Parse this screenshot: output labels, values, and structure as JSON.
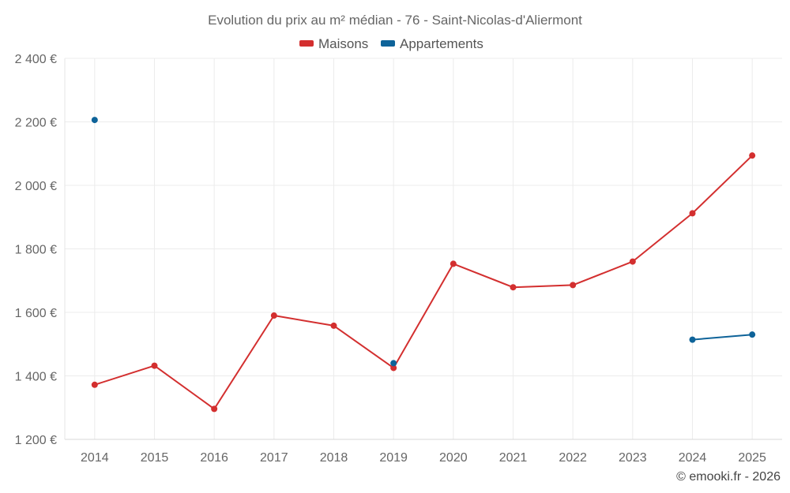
{
  "chart_data": {
    "type": "line",
    "title": "Evolution du prix au m² médian - 76 - Saint-Nicolas-d'Aliermont",
    "categories": [
      "2014",
      "2015",
      "2016",
      "2017",
      "2018",
      "2019",
      "2020",
      "2021",
      "2022",
      "2023",
      "2024",
      "2025"
    ],
    "series": [
      {
        "name": "Maisons",
        "color": "#d32f2f",
        "values": [
          1372,
          1432,
          1296,
          1590,
          1558,
          1425,
          1753,
          1679,
          1686,
          1760,
          1912,
          2094
        ]
      },
      {
        "name": "Appartements",
        "color": "#0e6399",
        "values": [
          2206,
          null,
          null,
          null,
          null,
          1440,
          null,
          null,
          null,
          null,
          1514,
          1530
        ]
      }
    ],
    "ylim": [
      1200,
      2400
    ],
    "yticks": [
      1200,
      1400,
      1600,
      1800,
      2000,
      2200,
      2400
    ],
    "ytick_labels": [
      "1 200 €",
      "1 400 €",
      "1 600 €",
      "1 800 €",
      "2 000 €",
      "2 200 €",
      "2 400 €"
    ],
    "grid": true,
    "legend": "top-center",
    "xlabel": "",
    "ylabel": ""
  },
  "credit": "© emooki.fr - 2026"
}
